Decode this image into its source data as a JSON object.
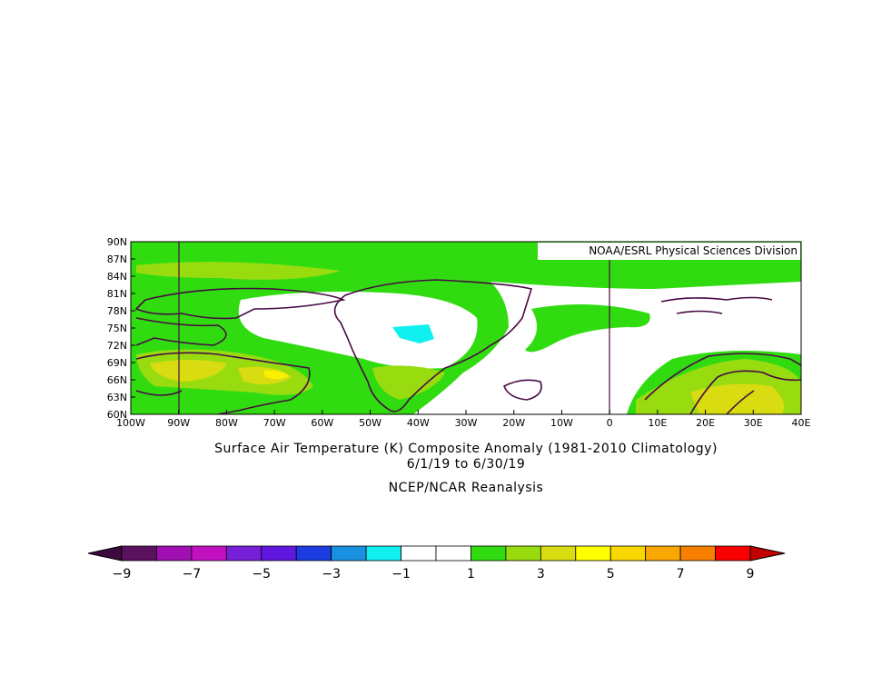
{
  "map": {
    "credit": "NOAA/ESRL Physical Sciences Division",
    "lat_labels": [
      "90N",
      "87N",
      "84N",
      "81N",
      "78N",
      "75N",
      "72N",
      "69N",
      "66N",
      "63N",
      "60N"
    ],
    "lon_labels": [
      "100W",
      "90W",
      "80W",
      "70W",
      "60W",
      "50W",
      "40W",
      "30W",
      "20W",
      "10W",
      "0",
      "10E",
      "20E",
      "30E",
      "40E"
    ],
    "title": "Surface Air Temperature (K) Composite Anomaly (1981-2010 Climatology)",
    "dates": "6/1/19  to 6/30/19",
    "source": "NCEP/NCAR Reanalysis"
  },
  "colorbar": {
    "labels": [
      "−9",
      "−7",
      "−5",
      "−3",
      "−1",
      "1",
      "3",
      "5",
      "7",
      "9"
    ],
    "colors": [
      "#3c0a3c",
      "#5c1060",
      "#a010b0",
      "#c010c0",
      "#7820d8",
      "#6018e0",
      "#1a3ce0",
      "#1a90e0",
      "#10f0f0",
      "#ffffff",
      "#ffffff",
      "#30dc10",
      "#98dc10",
      "#d8dc10",
      "#ffff00",
      "#f8d800",
      "#f8a800",
      "#f88000",
      "#f80000",
      "#c00000"
    ]
  }
}
